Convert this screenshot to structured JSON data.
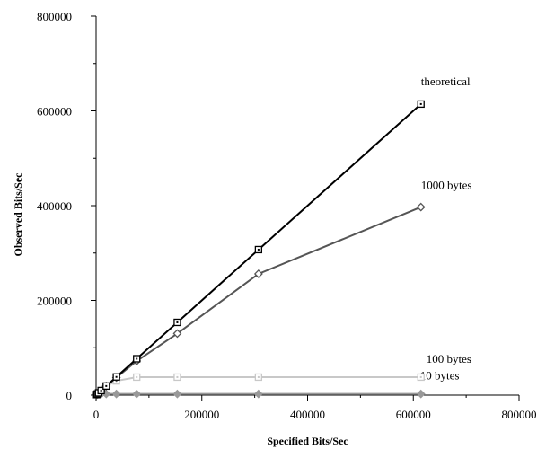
{
  "chart_data": {
    "type": "line",
    "title": "",
    "xlabel": "Specified Bits/Sec",
    "ylabel": "Observed Bits/Sec",
    "xlim": [
      0,
      800000
    ],
    "ylim": [
      0,
      800000
    ],
    "x_ticks": [
      0,
      200000,
      400000,
      600000,
      800000
    ],
    "x_tick_labels": [
      "0",
      "200000",
      "400000",
      "600000",
      "800000"
    ],
    "y_ticks": [
      0,
      200000,
      400000,
      600000,
      800000
    ],
    "y_tick_labels": [
      "0",
      "200000",
      "400000",
      "600000",
      "800000"
    ],
    "grid": false,
    "legend": "inline-labels",
    "x": [
      1200,
      2400,
      4800,
      9600,
      19200,
      38400,
      76800,
      153600,
      307200,
      614400
    ],
    "series": [
      {
        "name": "theoretical",
        "color": "#000000",
        "marker": "square-open",
        "values": [
          1200,
          2400,
          4800,
          9600,
          19200,
          38400,
          76800,
          153600,
          307200,
          614400
        ]
      },
      {
        "name": "1000 bytes",
        "color": "#555555",
        "marker": "diamond-open",
        "values": [
          1200,
          2400,
          4800,
          9600,
          19000,
          37000,
          72000,
          130000,
          256000,
          397000
        ]
      },
      {
        "name": "100 bytes",
        "color": "#c8c8c8",
        "marker": "square-open",
        "values": [
          1200,
          2400,
          4800,
          9600,
          19000,
          30000,
          38000,
          38000,
          38000,
          38000
        ]
      },
      {
        "name": "10 bytes",
        "color": "#999999",
        "marker": "diamond-filled",
        "values": [
          1000,
          1500,
          2000,
          2400,
          2500,
          2500,
          2500,
          2500,
          2500,
          2500
        ]
      }
    ]
  }
}
